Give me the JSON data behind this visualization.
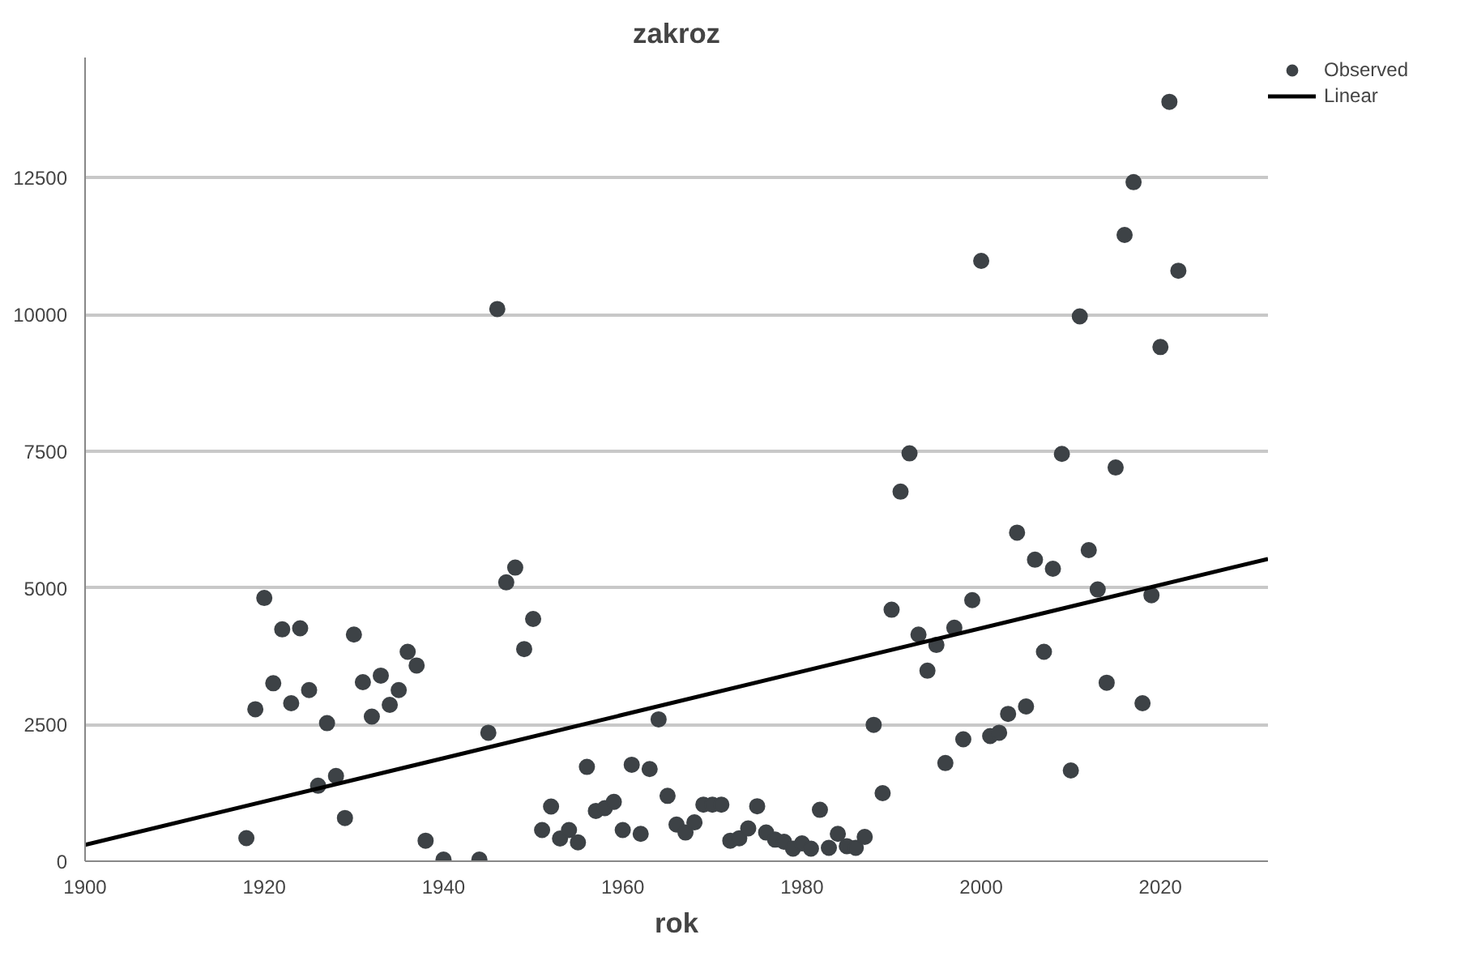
{
  "chart_data": {
    "type": "scatter",
    "title": "zakroz",
    "xlabel": "rok",
    "xlim": [
      1900,
      2032
    ],
    "ylim": [
      0,
      14700
    ],
    "xticks": [
      1900,
      1920,
      1940,
      1960,
      1980,
      2000,
      2020
    ],
    "yticks": [
      0,
      2500,
      5000,
      7500,
      10000,
      12500
    ],
    "grid": "y",
    "legend": "top right",
    "marker": "circle",
    "series": [
      {
        "name": "Observed",
        "color": "#3d4246",
        "x": [
          1918,
          1919,
          1920,
          1921,
          1922,
          1923,
          1924,
          1925,
          1926,
          1927,
          1928,
          1929,
          1930,
          1931,
          1932,
          1933,
          1934,
          1935,
          1936,
          1937,
          1938,
          1940,
          1944,
          1945,
          1946,
          1947,
          1948,
          1949,
          1950,
          1951,
          1952,
          1953,
          1954,
          1955,
          1956,
          1957,
          1958,
          1959,
          1960,
          1961,
          1962,
          1963,
          1964,
          1965,
          1966,
          1967,
          1968,
          1969,
          1970,
          1971,
          1972,
          1973,
          1974,
          1975,
          1976,
          1977,
          1978,
          1979,
          1980,
          1981,
          1982,
          1983,
          1984,
          1985,
          1986,
          1987,
          1988,
          1989,
          1990,
          1991,
          1992,
          1993,
          1994,
          1995,
          1996,
          1997,
          1998,
          1999,
          2000,
          2001,
          2002,
          2003,
          2004,
          2005,
          2006,
          2007,
          2008,
          2009,
          2010,
          2011,
          2012,
          2013,
          2014,
          2015,
          2016,
          2017,
          2018,
          2019,
          2020,
          2021,
          2022
        ],
        "values": [
          423,
          2780,
          4815,
          3255,
          4240,
          2890,
          4260,
          3130,
          1380,
          2525,
          1560,
          790,
          4145,
          3275,
          2645,
          3395,
          2860,
          3130,
          3830,
          3580,
          375,
          30,
          30,
          2350,
          10100,
          5100,
          5370,
          3880,
          4430,
          570,
          1000,
          415,
          570,
          345,
          1725,
          920,
          970,
          1085,
          570,
          1765,
          500,
          1685,
          2595,
          1195,
          670,
          525,
          710,
          1035,
          1035,
          1035,
          375,
          420,
          600,
          1005,
          525,
          395,
          355,
          230,
          325,
          230,
          940,
          245,
          500,
          275,
          245,
          445,
          2495,
          1245,
          4600,
          6760,
          7460,
          4145,
          3485,
          3955,
          1795,
          4270,
          2230,
          4775,
          10980,
          2290,
          2350,
          2695,
          6010,
          2830,
          5515,
          3830,
          5350,
          7450,
          1660,
          9965,
          5690,
          4970,
          3265,
          7200,
          11455,
          12420,
          2890,
          4865,
          9405,
          13890,
          10800
        ]
      },
      {
        "name": "Linear",
        "type": "line",
        "color": "#000000",
        "marker": "none",
        "line_style": "solid",
        "x": [
          1900,
          2032
        ],
        "values": [
          300,
          5530
        ]
      }
    ]
  }
}
